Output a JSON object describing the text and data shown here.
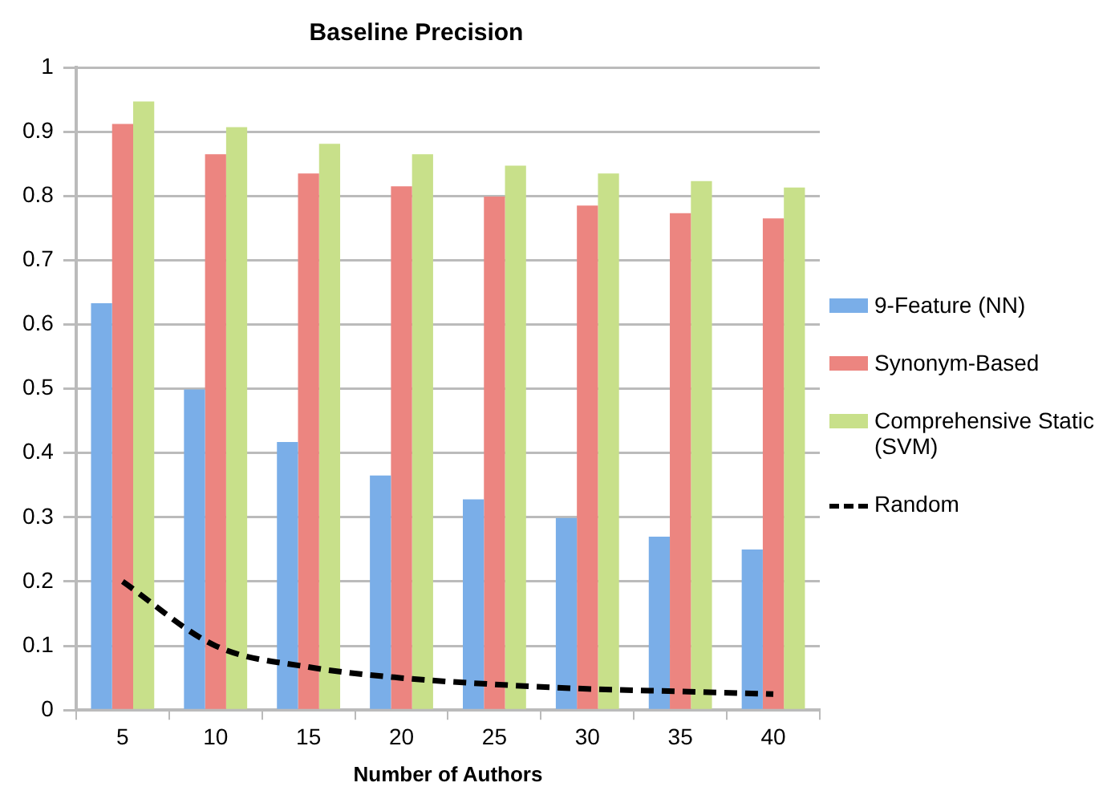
{
  "chart_data": {
    "type": "bar",
    "title": "Baseline Precision",
    "xlabel": "Number of Authors",
    "categories": [
      "5",
      "10",
      "15",
      "20",
      "25",
      "30",
      "35",
      "40"
    ],
    "series": [
      {
        "name": "9-Feature (NN)",
        "color": "#7aaee8",
        "values": [
          0.633,
          0.499,
          0.417,
          0.365,
          0.328,
          0.299,
          0.27,
          0.25
        ]
      },
      {
        "name": "Synonym-Based",
        "color": "#ec8580",
        "values": [
          0.912,
          0.865,
          0.835,
          0.815,
          0.799,
          0.785,
          0.773,
          0.765
        ]
      },
      {
        "name": "Comprehensive Static (SVM)",
        "color": "#c8e08a",
        "values": [
          0.947,
          0.907,
          0.881,
          0.865,
          0.847,
          0.835,
          0.823,
          0.813
        ]
      },
      {
        "name": "Random",
        "type": "line",
        "color": "#000000",
        "line_style": "dashed",
        "marker": "none",
        "values": [
          0.2,
          0.1,
          0.067,
          0.05,
          0.04,
          0.033,
          0.029,
          0.025
        ]
      }
    ],
    "ylim": [
      0,
      1
    ],
    "yticks": [
      0,
      0.1,
      0.2,
      0.3,
      0.4,
      0.5,
      0.6,
      0.7,
      0.8,
      0.9,
      1
    ],
    "grid": "y",
    "legend": "right"
  }
}
